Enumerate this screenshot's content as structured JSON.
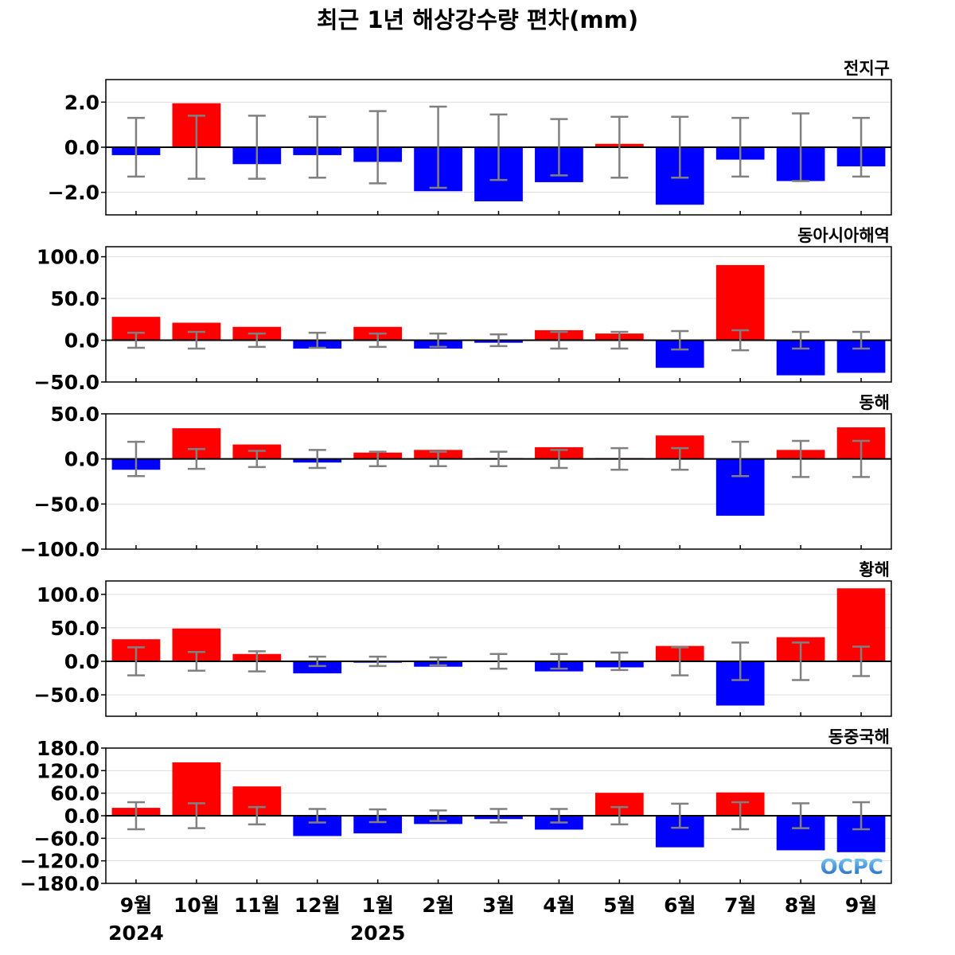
{
  "title": "최근 1년 해상강수량 편차(mm)",
  "logo": "OCPC",
  "colors": {
    "positive": "#ff0000",
    "negative": "#0000ff",
    "error_bar": "#808080",
    "grid": "#dddddd"
  },
  "months": [
    "9월",
    "10월",
    "11월",
    "12월",
    "1월",
    "2월",
    "3월",
    "4월",
    "5월",
    "6월",
    "7월",
    "8월",
    "9월"
  ],
  "years": [
    {
      "label": "2024",
      "month_index": 0
    },
    {
      "label": "2025",
      "month_index": 4
    }
  ],
  "chart_data": [
    {
      "type": "bar",
      "title": "전지구",
      "categories": [
        "9월",
        "10월",
        "11월",
        "12월",
        "1월",
        "2월",
        "3월",
        "4월",
        "5월",
        "6월",
        "7월",
        "8월",
        "9월"
      ],
      "values": [
        -0.35,
        1.95,
        -0.75,
        -0.35,
        -0.65,
        -1.95,
        -2.4,
        -1.55,
        0.15,
        -2.55,
        -0.55,
        -1.5,
        -0.85
      ],
      "error_bars": [
        1.3,
        1.4,
        1.4,
        1.35,
        1.6,
        1.8,
        1.45,
        1.25,
        1.35,
        1.35,
        1.3,
        1.5,
        1.3
      ],
      "ylim": [
        -3.0,
        3.0
      ],
      "yticks": [
        -2.0,
        0.0,
        2.0
      ],
      "ytick_labels": [
        "−2.0",
        "0.0",
        "2.0"
      ]
    },
    {
      "type": "bar",
      "title": "동아시아해역",
      "categories": [
        "9월",
        "10월",
        "11월",
        "12월",
        "1월",
        "2월",
        "3월",
        "4월",
        "5월",
        "6월",
        "7월",
        "8월",
        "9월"
      ],
      "values": [
        28,
        21,
        16,
        -10,
        16,
        -10,
        -3,
        12,
        8,
        -33,
        90,
        -42,
        -39
      ],
      "error_bars": [
        9,
        10,
        8,
        9,
        8,
        8,
        7,
        10,
        10,
        11,
        12,
        10,
        10
      ],
      "ylim": [
        -50,
        112
      ],
      "yticks": [
        -50,
        0,
        50,
        100
      ],
      "ytick_labels": [
        "−50.0",
        "0.0",
        "50.0",
        "100.0"
      ]
    },
    {
      "type": "bar",
      "title": "동해",
      "categories": [
        "9월",
        "10월",
        "11월",
        "12월",
        "1월",
        "2월",
        "3월",
        "4월",
        "5월",
        "6월",
        "7월",
        "8월",
        "9월"
      ],
      "values": [
        -12,
        34,
        16,
        -4,
        7,
        10,
        1,
        13,
        1,
        26,
        -63,
        10,
        35
      ],
      "error_bars": [
        19,
        11,
        9,
        10,
        8,
        8,
        8,
        10,
        12,
        12,
        19,
        20,
        20
      ],
      "ylim": [
        -100,
        50
      ],
      "yticks": [
        -100,
        -50,
        0,
        50
      ],
      "ytick_labels": [
        "−100.0",
        "−50.0",
        "0.0",
        "50.0"
      ]
    },
    {
      "type": "bar",
      "title": "황해",
      "categories": [
        "9월",
        "10월",
        "11월",
        "12월",
        "1월",
        "2월",
        "3월",
        "4월",
        "5월",
        "6월",
        "7월",
        "8월",
        "9월"
      ],
      "values": [
        33,
        49,
        11,
        -18,
        -2,
        -8,
        1,
        -15,
        -9,
        23,
        -66,
        36,
        109
      ],
      "error_bars": [
        21,
        14,
        15,
        7,
        7,
        6,
        11,
        11,
        13,
        21,
        28,
        28,
        22
      ],
      "ylim": [
        -82,
        120
      ],
      "yticks": [
        -50,
        0,
        50,
        100
      ],
      "ytick_labels": [
        "−50.0",
        "0.0",
        "50.0",
        "100.0"
      ]
    },
    {
      "type": "bar",
      "title": "동중국해",
      "categories": [
        "9월",
        "10월",
        "11월",
        "12월",
        "1월",
        "2월",
        "3월",
        "4월",
        "5월",
        "6월",
        "7월",
        "8월",
        "9월"
      ],
      "values": [
        21,
        142,
        78,
        -54,
        -47,
        -22,
        -9,
        -37,
        61,
        -84,
        62,
        -92,
        -97
      ],
      "error_bars": [
        36,
        33,
        23,
        18,
        17,
        14,
        18,
        18,
        23,
        32,
        36,
        33,
        36
      ],
      "ylim": [
        -180,
        180
      ],
      "yticks": [
        -180,
        -120,
        -60,
        0,
        60,
        120,
        180
      ],
      "ytick_labels": [
        "−180.0",
        "−120.0",
        "−60.0",
        "0.0",
        "60.0",
        "120.0",
        "180.0"
      ]
    }
  ]
}
